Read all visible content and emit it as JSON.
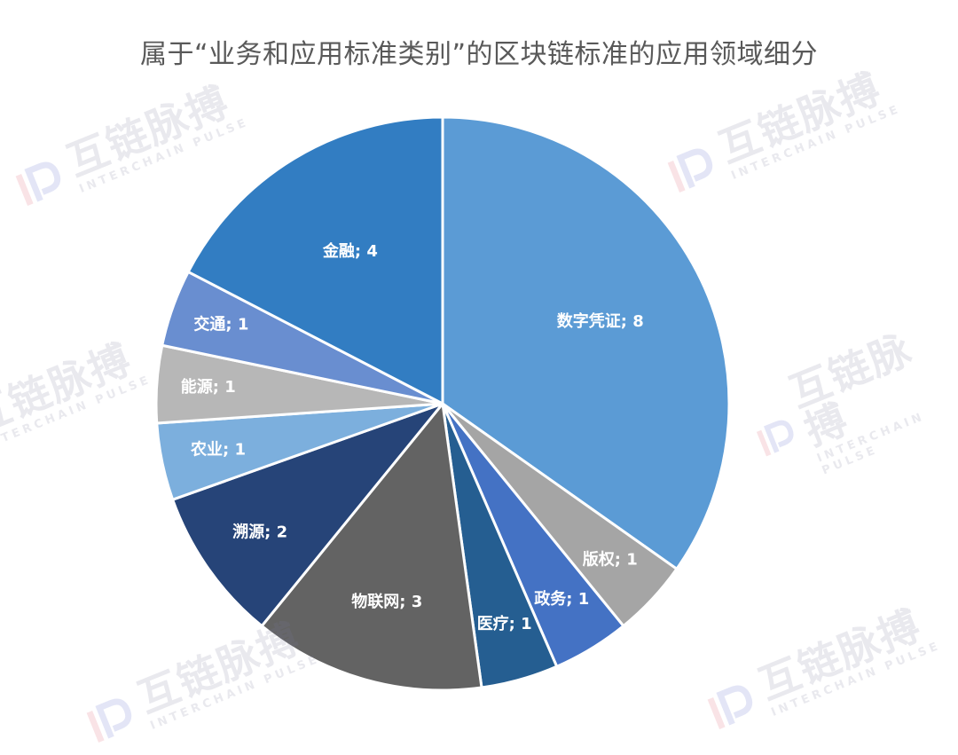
{
  "chart_data": {
    "type": "pie",
    "title": "属于“业务和应用标准类别”的区块链标准的应用领域细分",
    "slices": [
      {
        "label": "数字凭证",
        "value": 8,
        "display": "数字凭证; 8",
        "color": "#5b9bd5"
      },
      {
        "label": "版权",
        "value": 1,
        "display": "版权; 1",
        "color": "#a5a5a5"
      },
      {
        "label": "政务",
        "value": 1,
        "display": "政务; 1",
        "color": "#4472c4"
      },
      {
        "label": "医疗",
        "value": 1,
        "display": "医疗; 1",
        "color": "#255e91"
      },
      {
        "label": "物联网",
        "value": 3,
        "display": "物联网; 3",
        "color": "#636363"
      },
      {
        "label": "溯源",
        "value": 2,
        "display": "溯源; 2",
        "color": "#264478"
      },
      {
        "label": "农业",
        "value": 1,
        "display": "农业; 1",
        "color": "#7cafdd"
      },
      {
        "label": "能源",
        "value": 1,
        "display": "能源; 1",
        "color": "#b7b7b7"
      },
      {
        "label": "交通",
        "value": 1,
        "display": "交通; 1",
        "color": "#698ed0"
      },
      {
        "label": "金融",
        "value": 4,
        "display": "金融; 4",
        "color": "#327dc2"
      }
    ],
    "start_angle": "12 o'clock",
    "direction": "clockwise",
    "legend": "none",
    "data_labels": "inside, category; value"
  },
  "watermark": {
    "text": "互链脉搏",
    "subtext": "INTERCHAIN PULSE",
    "logo_color": "#e05a6a"
  }
}
